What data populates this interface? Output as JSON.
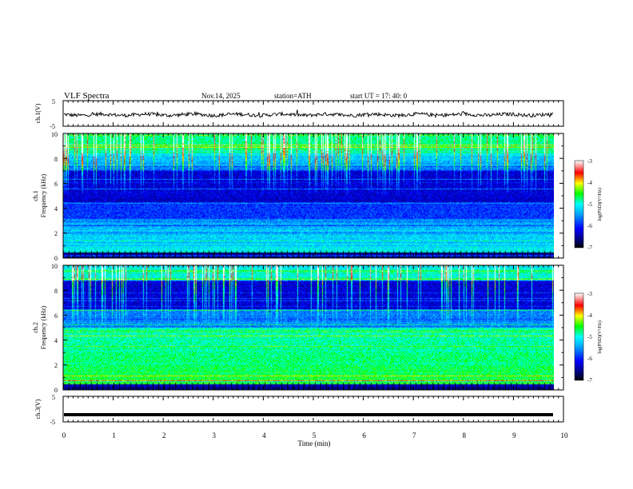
{
  "header": {
    "title": "VLF  Spectra",
    "date": "Nov.14, 2025",
    "station": "station=ATH",
    "start": "start  UT  =    17: 40: 0"
  },
  "chart_data": [
    {
      "type": "line",
      "name": "ch1-waveform",
      "ylabel": "ch.1(V)",
      "ylim": [
        -5,
        5
      ],
      "yticks": [
        "5",
        "-5"
      ],
      "baseline": -0.5,
      "amplitude": 0.7
    },
    {
      "type": "heatmap",
      "name": "ch1-spectrogram",
      "ylabel_line1": "ch.1",
      "ylabel_line2": "Frequency (kHz)",
      "ylim": [
        0,
        10
      ],
      "yticks": [
        "0",
        "2",
        "4",
        "6",
        "8",
        "10"
      ],
      "colorbar": {
        "label": "log(PSD)(V²/Hz)",
        "range": [
          -7,
          -3
        ],
        "ticks": [
          "-3",
          "-4",
          "-5",
          "-6",
          "-7"
        ]
      }
    },
    {
      "type": "heatmap",
      "name": "ch2-spectrogram",
      "ylabel_line1": "ch.2",
      "ylabel_line2": "Frequency (kHz)",
      "ylim": [
        0,
        10
      ],
      "yticks": [
        "0",
        "2",
        "4",
        "6",
        "8",
        "10"
      ],
      "colorbar": {
        "label": "log(PSD)(V²/Hz)",
        "range": [
          -7,
          -3
        ],
        "ticks": [
          "-3",
          "-4",
          "-5",
          "-6",
          "-7"
        ]
      }
    },
    {
      "type": "line",
      "name": "ch3-waveform",
      "ylabel": "ch.3(V)",
      "ylim": [
        -5,
        5
      ],
      "yticks": [
        "5",
        "-5"
      ],
      "baseline": -2.2,
      "amplitude": 0.1
    }
  ],
  "xaxis": {
    "label": "Time  (min)",
    "range": [
      0,
      10
    ],
    "data_end": 9.8,
    "ticks": [
      "0",
      "1",
      "2",
      "3",
      "4",
      "5",
      "6",
      "7",
      "8",
      "9",
      "10"
    ]
  }
}
